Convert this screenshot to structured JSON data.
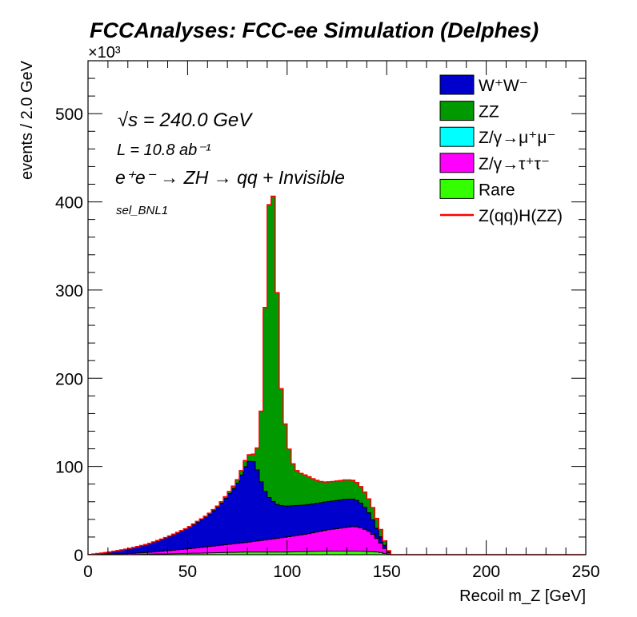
{
  "chart_data": {
    "type": "bar",
    "histogram_style": "stacked-step",
    "title": "FCCAnalyses: FCC-ee Simulation (Delphes)",
    "xlabel": "Recoil m_Z [GeV]",
    "ylabel": "events / 2.0 GeV",
    "y_multiplier_label": "×10³",
    "xlim": [
      0,
      250
    ],
    "ylim": [
      0,
      560
    ],
    "x_major_ticks": [
      0,
      50,
      100,
      150,
      200,
      250
    ],
    "y_major_ticks": [
      0,
      100,
      200,
      300,
      400,
      500
    ],
    "bin_width": 2,
    "annotations": {
      "energy": "√s = 240.0 GeV",
      "lumi": "L = 10.8 ab⁻¹",
      "process": "e⁺e⁻ → ZH → qq + Invisible",
      "selection": "sel_BNL1"
    },
    "legend": {
      "position": "top-right",
      "entries": [
        {
          "label": "W⁺W⁻",
          "color": "#0000cc",
          "style": "fill"
        },
        {
          "label": "ZZ",
          "color": "#009900",
          "style": "fill"
        },
        {
          "label": "Z/γ→μ⁺μ⁻",
          "color": "#00ffff",
          "style": "fill"
        },
        {
          "label": "Z/γ→τ⁺τ⁻",
          "color": "#ff00ff",
          "style": "fill"
        },
        {
          "label": "Rare",
          "color": "#33ff00",
          "style": "fill"
        },
        {
          "label": "Z(qq)H(ZZ)",
          "color": "#ff0000",
          "style": "line"
        }
      ]
    },
    "series": [
      {
        "name": "Rare",
        "color": "#33ff00",
        "points": [
          [
            0,
            0
          ],
          [
            20,
            0
          ],
          [
            40,
            1
          ],
          [
            60,
            2
          ],
          [
            80,
            3
          ],
          [
            100,
            3
          ],
          [
            120,
            4
          ],
          [
            136,
            4
          ],
          [
            146,
            3
          ],
          [
            150,
            1
          ],
          [
            152,
            0
          ],
          [
            250,
            0
          ]
        ]
      },
      {
        "name": "Z/γ→τ⁺τ⁻",
        "color": "#ff00ff",
        "points": [
          [
            0,
            0
          ],
          [
            10,
            0.5
          ],
          [
            30,
            2
          ],
          [
            50,
            5
          ],
          [
            70,
            9
          ],
          [
            80,
            11
          ],
          [
            90,
            14
          ],
          [
            100,
            17
          ],
          [
            110,
            20
          ],
          [
            120,
            24
          ],
          [
            130,
            27
          ],
          [
            134,
            28
          ],
          [
            138,
            26
          ],
          [
            142,
            22
          ],
          [
            146,
            13
          ],
          [
            150,
            3
          ],
          [
            152,
            0
          ],
          [
            250,
            0
          ]
        ]
      },
      {
        "name": "Z/γ→μ⁺μ⁻",
        "color": "#00ffff",
        "points": [
          [
            0,
            0
          ],
          [
            250,
            0
          ]
        ]
      },
      {
        "name": "W⁺W⁻",
        "color": "#0000cc",
        "points": [
          [
            0,
            0
          ],
          [
            5,
            1
          ],
          [
            10,
            2
          ],
          [
            20,
            5
          ],
          [
            30,
            9
          ],
          [
            40,
            15
          ],
          [
            50,
            23
          ],
          [
            60,
            35
          ],
          [
            66,
            45
          ],
          [
            70,
            55
          ],
          [
            74,
            65
          ],
          [
            76,
            72
          ],
          [
            78,
            82
          ],
          [
            80,
            90
          ],
          [
            82,
            93
          ],
          [
            84,
            88
          ],
          [
            86,
            73
          ],
          [
            88,
            60
          ],
          [
            90,
            50
          ],
          [
            92,
            45
          ],
          [
            94,
            40
          ],
          [
            96,
            37
          ],
          [
            100,
            35
          ],
          [
            110,
            33
          ],
          [
            120,
            32
          ],
          [
            130,
            32
          ],
          [
            134,
            31
          ],
          [
            138,
            27
          ],
          [
            142,
            19
          ],
          [
            146,
            9
          ],
          [
            150,
            2
          ],
          [
            152,
            0
          ],
          [
            250,
            0
          ]
        ]
      },
      {
        "name": "ZZ",
        "color": "#009900",
        "points": [
          [
            0,
            0
          ],
          [
            60,
            1
          ],
          [
            70,
            2
          ],
          [
            76,
            4
          ],
          [
            78,
            6
          ],
          [
            80,
            8
          ],
          [
            82,
            7
          ],
          [
            84,
            10
          ],
          [
            86,
            40
          ],
          [
            88,
            120
          ],
          [
            90,
            297
          ],
          [
            92,
            367
          ],
          [
            94,
            325
          ],
          [
            96,
            155
          ],
          [
            98,
            110
          ],
          [
            100,
            76
          ],
          [
            102,
            53
          ],
          [
            104,
            42
          ],
          [
            106,
            37
          ],
          [
            110,
            33
          ],
          [
            114,
            27
          ],
          [
            118,
            23
          ],
          [
            122,
            22
          ],
          [
            126,
            22
          ],
          [
            130,
            22
          ],
          [
            134,
            21
          ],
          [
            138,
            18
          ],
          [
            142,
            15
          ],
          [
            146,
            10
          ],
          [
            150,
            3
          ],
          [
            152,
            0
          ],
          [
            250,
            0
          ]
        ]
      },
      {
        "name": "Z(qq)H(ZZ)",
        "color": "#ff0000",
        "points": [
          [
            0,
            0
          ],
          [
            250,
            0
          ]
        ]
      }
    ]
  }
}
